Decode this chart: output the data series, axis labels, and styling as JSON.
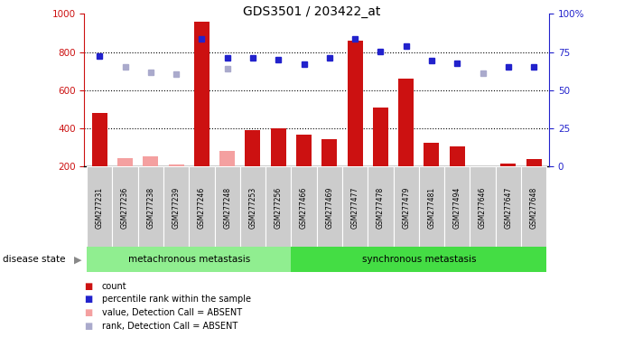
{
  "title": "GDS3501 / 203422_at",
  "samples": [
    "GSM277231",
    "GSM277236",
    "GSM277238",
    "GSM277239",
    "GSM277246",
    "GSM277248",
    "GSM277253",
    "GSM277256",
    "GSM277466",
    "GSM277469",
    "GSM277477",
    "GSM277478",
    "GSM277479",
    "GSM277481",
    "GSM277494",
    "GSM277646",
    "GSM277647",
    "GSM277648"
  ],
  "count_values": [
    480,
    null,
    null,
    null,
    960,
    null,
    390,
    400,
    365,
    345,
    860,
    510,
    660,
    325,
    305,
    null,
    215,
    240
  ],
  "count_absent": [
    null,
    245,
    255,
    210,
    null,
    280,
    null,
    null,
    null,
    null,
    null,
    null,
    null,
    null,
    null,
    null,
    null,
    null
  ],
  "rank_values": [
    780,
    null,
    null,
    null,
    870,
    770,
    770,
    760,
    735,
    770,
    870,
    805,
    830,
    755,
    740,
    null,
    720,
    720
  ],
  "rank_absent": [
    null,
    720,
    695,
    685,
    null,
    715,
    null,
    null,
    null,
    null,
    null,
    null,
    null,
    null,
    null,
    690,
    null,
    null
  ],
  "n_meta": 8,
  "n_total": 18,
  "ylim_left": [
    200,
    1000
  ],
  "ylim_right": [
    0,
    100
  ],
  "yticks_left": [
    200,
    400,
    600,
    800,
    1000
  ],
  "yticks_right": [
    0,
    25,
    50,
    75,
    100
  ],
  "bar_color": "#cc1111",
  "bar_absent_color": "#f4a0a0",
  "rank_color": "#2222cc",
  "rank_absent_color": "#aaaacc",
  "meta_bg": "#90ee90",
  "sync_bg": "#44dd44",
  "label_bg": "#cccccc",
  "legend_items": [
    "count",
    "percentile rank within the sample",
    "value, Detection Call = ABSENT",
    "rank, Detection Call = ABSENT"
  ],
  "legend_colors": [
    "#cc1111",
    "#2222cc",
    "#f4a0a0",
    "#aaaacc"
  ]
}
